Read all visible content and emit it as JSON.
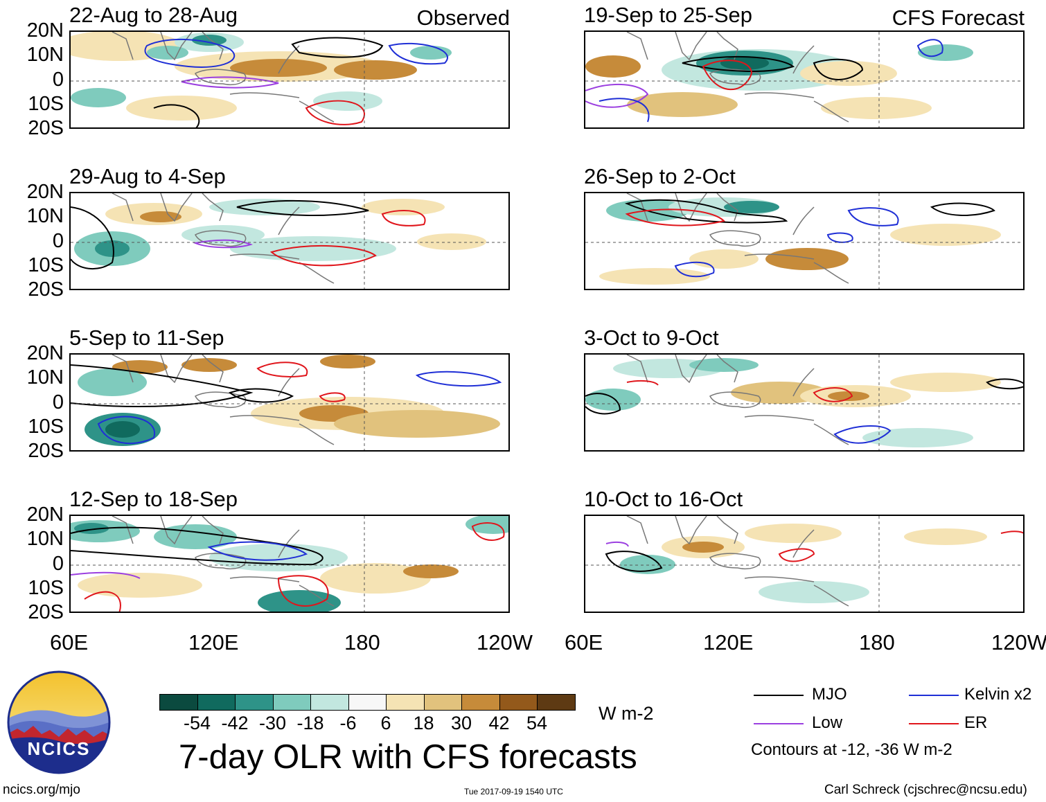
{
  "panels": [
    {
      "title": "22-Aug to 28-Aug",
      "corner": "Observed"
    },
    {
      "title": "29-Aug to 4-Sep",
      "corner": ""
    },
    {
      "title": "5-Sep to 11-Sep",
      "corner": ""
    },
    {
      "title": "12-Sep to 18-Sep",
      "corner": ""
    },
    {
      "title": "19-Sep to 25-Sep",
      "corner": "CFS Forecast"
    },
    {
      "title": "26-Sep to 2-Oct",
      "corner": ""
    },
    {
      "title": "3-Oct to 9-Oct",
      "corner": ""
    },
    {
      "title": "10-Oct to 16-Oct",
      "corner": ""
    }
  ],
  "lat_labels": [
    "20N",
    "10N",
    "0",
    "10S",
    "20S"
  ],
  "lon_labels": [
    "60E",
    "120E",
    "180",
    "120W"
  ],
  "colorbar": {
    "colors": [
      "#0b4a3f",
      "#106a5e",
      "#2e9388",
      "#7fcbbd",
      "#c2e7df",
      "#f7f7f7",
      "#f5e3b4",
      "#e1c27d",
      "#c68b3a",
      "#93591b",
      "#5e3a13"
    ],
    "labels": [
      "-54",
      "-42",
      "-30",
      "-18",
      "-6",
      "6",
      "18",
      "30",
      "42",
      "54"
    ],
    "units": "W m-2"
  },
  "title": "7-day OLR with CFS forecasts",
  "legend": {
    "items": [
      {
        "label": "MJO",
        "color": "#000000"
      },
      {
        "label": "Kelvin x2",
        "color": "#1f2fd6"
      },
      {
        "label": "Low",
        "color": "#9b3fe0"
      },
      {
        "label": "ER",
        "color": "#e0151b"
      }
    ],
    "note": "Contours at -12, -36 W m-2"
  },
  "logo_text": "NCICS",
  "footer": {
    "url": "ncics.org/mjo",
    "timestamp": "Tue 2017-09-19 1540 UTC",
    "credit": "Carl Schreck (cjschrec@ncsu.edu)"
  }
}
